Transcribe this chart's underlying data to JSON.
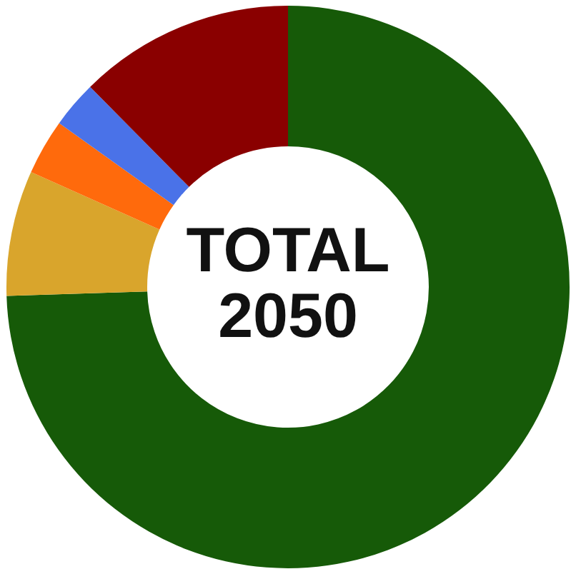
{
  "chart_data": {
    "type": "donut",
    "categories": [
      null,
      null,
      null,
      null,
      null
    ],
    "values": [
      74.5,
      7.2,
      3.2,
      2.7,
      12.4
    ],
    "colors": [
      "#165a08",
      "#d9a52c",
      "#ff6a0c",
      "#4a72e8",
      "#8a0000"
    ],
    "annotations": [
      "TOTAL",
      "2050"
    ],
    "legend": false
  }
}
